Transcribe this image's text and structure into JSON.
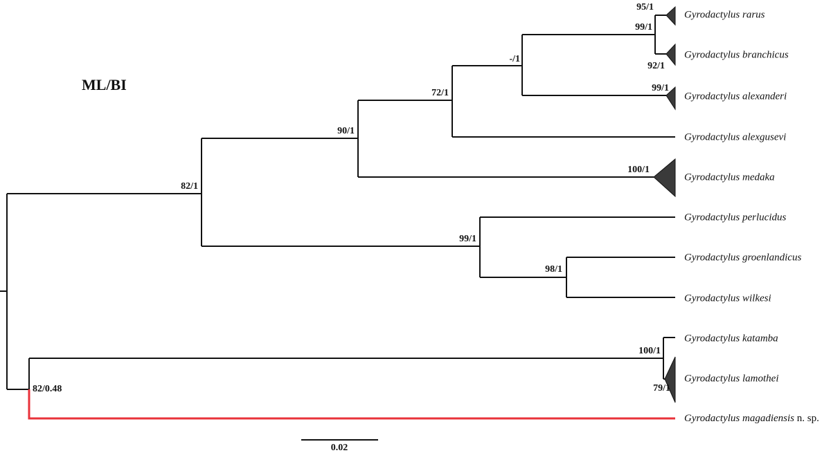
{
  "title": "ML/BI",
  "taxa": [
    "Gyrodactylus rarus",
    "Gyrodactylus branchicus",
    "Gyrodactylus alexanderi",
    "Gyrodactylus alexgusevi",
    "Gyrodactylus medaka",
    "Gyrodactylus perlucidus",
    "Gyrodactylus groenlandicus",
    "Gyrodactylus wilkesi",
    "Gyrodactylus katamba",
    "Gyrodactylus lamothei"
  ],
  "new_species": {
    "name": "Gyrodactylus magadiensis",
    "suffix": "n. sp."
  },
  "supports": [
    "95/1",
    "99/1",
    "92/1",
    "-/1",
    "99/1",
    "72/1",
    "90/1",
    "100/1",
    "82/1",
    "99/1",
    "98/1",
    "100/1",
    "79/1",
    "82/0.48"
  ],
  "scale_bar": "0.02"
}
